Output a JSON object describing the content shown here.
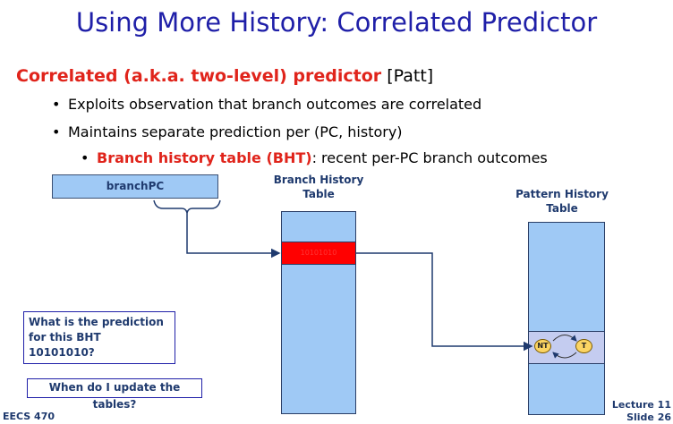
{
  "title": "Using More History: Correlated Predictor",
  "heading": {
    "main": "Correlated (a.k.a. two-level) predictor",
    "cite": " [Patt]"
  },
  "bullets": [
    "Exploits observation that branch outcomes are correlated",
    "Maintains separate prediction per (PC, history)"
  ],
  "sub_bullet": {
    "bold": "Branch history table (BHT)",
    "rest": ": recent per-PC branch outcomes"
  },
  "diagram": {
    "branchpc_label": "branchPC",
    "bht_caption": [
      "Branch History",
      "Table"
    ],
    "bht_entry": "10101010",
    "pht_caption": [
      "Pattern History",
      "Table"
    ],
    "states": {
      "not_taken": "NT",
      "taken": "T"
    }
  },
  "questions": [
    [
      "What is the prediction",
      "for this BHT 10101010?"
    ],
    "When do I update the tables?"
  ],
  "footer": {
    "course": "EECS 470",
    "lecture": "Lecture 11",
    "slide": "Slide 26"
  },
  "colors": {
    "title": "#1f1fa8",
    "emphasis": "#e0241b",
    "table_fill": "#9fc9f5",
    "bht_entry_fill": "#ff0000",
    "state_fill": "#fbd463"
  }
}
